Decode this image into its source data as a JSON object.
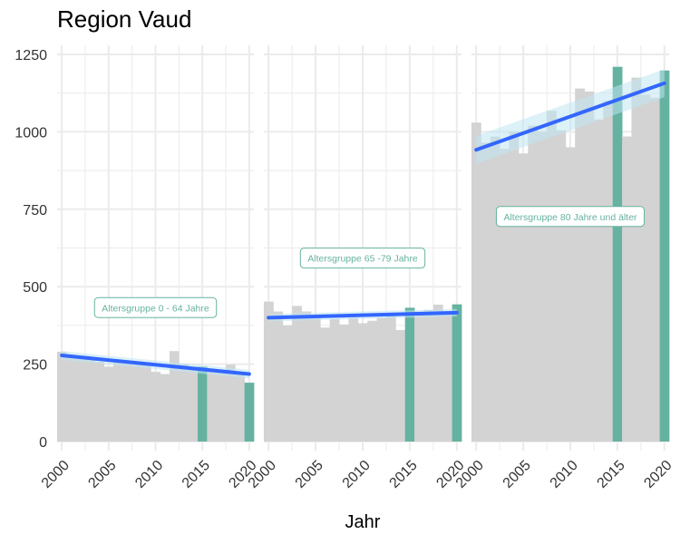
{
  "title": "Region Vaud",
  "chart_data": {
    "type": "bar",
    "title": "Region Vaud",
    "xlabel": "Jahr",
    "ylabel": "",
    "ylim": [
      0,
      1250
    ],
    "yticks": [
      0,
      250,
      500,
      750,
      1000,
      1250
    ],
    "xticks": [
      2000,
      2005,
      2010,
      2015,
      2020
    ],
    "xlim": [
      1999.5,
      2020.5
    ],
    "grid": true,
    "colors": {
      "bar": "#d3d3d3",
      "highlight": "#66b2a0",
      "trend": "#3366ff",
      "ribbon": "#bfe5f2",
      "annotation_text": "#66b2a0",
      "grid": "#ebebeb"
    },
    "facets": [
      {
        "label": "Altersgruppe 0 - 64 Jahre",
        "years": [
          2000,
          2001,
          2002,
          2003,
          2004,
          2005,
          2006,
          2007,
          2008,
          2009,
          2010,
          2011,
          2012,
          2013,
          2014,
          2015,
          2016,
          2017,
          2018,
          2019,
          2020
        ],
        "values": [
          290,
          275,
          270,
          265,
          258,
          242,
          262,
          252,
          248,
          250,
          225,
          218,
          292,
          250,
          240,
          242,
          235,
          232,
          248,
          222,
          190
        ],
        "highlight_years": [
          2015,
          2020
        ],
        "trend": {
          "start": 278,
          "end": 218,
          "band": 14
        }
      },
      {
        "label": "Altersgruppe 65 -79 Jahre",
        "years": [
          2000,
          2001,
          2002,
          2003,
          2004,
          2005,
          2006,
          2007,
          2008,
          2009,
          2010,
          2011,
          2012,
          2013,
          2014,
          2015,
          2016,
          2017,
          2018,
          2019,
          2020
        ],
        "values": [
          452,
          420,
          375,
          438,
          420,
          405,
          368,
          395,
          378,
          400,
          382,
          390,
          400,
          410,
          360,
          432,
          420,
          425,
          442,
          415,
          443
        ],
        "highlight_years": [
          2015,
          2020
        ],
        "trend": {
          "start": 400,
          "end": 416,
          "band": 12
        }
      },
      {
        "label": "Altersgruppe 80 Jahre und älter",
        "years": [
          2000,
          2001,
          2002,
          2003,
          2004,
          2005,
          2006,
          2007,
          2008,
          2009,
          2010,
          2011,
          2012,
          2013,
          2014,
          2015,
          2016,
          2017,
          2018,
          2019,
          2020
        ],
        "values": [
          1030,
          965,
          985,
          945,
          1000,
          930,
          1020,
          1000,
          1068,
          1005,
          950,
          1140,
          1130,
          1040,
          1100,
          1210,
          985,
          1175,
          1120,
          1110,
          1198
        ],
        "highlight_years": [
          2015,
          2020
        ],
        "trend": {
          "start": 942,
          "end": 1157,
          "band": 45
        }
      }
    ]
  }
}
